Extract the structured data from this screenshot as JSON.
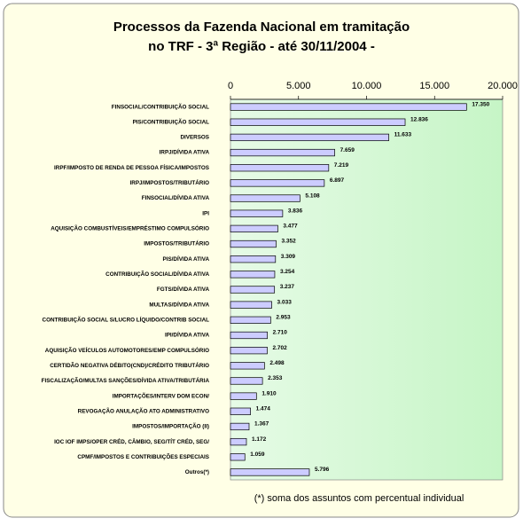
{
  "chart_data": {
    "type": "hbar",
    "title": [
      "Processos da Fazenda Nacional em tramitação",
      "no TRF - 3ª Região - até 30/11/2004 -"
    ],
    "categories": [
      "FINSOCIAL/CONTRIBUIÇÃO SOCIAL",
      "PIS/CONTRIBUIÇÃO SOCIAL",
      "DIVERSOS",
      "IRPJ/DÍVIDA ATIVA",
      "IRPF/IMPOSTO DE RENDA DE PESSOA FÍSICA/IMPOSTOS",
      "IRPJ/IMPOSTOS/TRIBUTÁRIO",
      "FINSOCIAL/DÍVIDA ATIVA",
      "IPI",
      "AQUISIÇÃO COMBUSTÍVEIS/EMPRÉSTIMO COMPULSÓRIO",
      "IMPOSTOS/TRIBUTÁRIO",
      "PIS/DÍVIDA ATIVA",
      "CONTRIBUIÇÃO SOCIAL/DÍVIDA ATIVA",
      "FGTS/DÍVIDA ATIVA",
      "MULTAS/DÍVIDA ATIVA",
      "CONTRIBUIÇÃO SOCIAL S/LUCRO LÍQUIDO/CONTRIB SOCIAL",
      "IPI/DÍVIDA ATIVA",
      "AQUISIÇÃO VEÍCULOS AUTOMOTORES/EMP COMPULSÓRIO",
      "CERTIDÃO NEGATIVA DÉBITO(CND)/CRÉDITO TRIBUTÁRIO",
      "FISCALIZAÇÃO/MULTAS SANÇÕES/DÍVIDA ATIVA/TRIBUTÁRIA",
      "IMPORTAÇÕES/INTERV DOM ECON/",
      "REVOGAÇÃO ANULAÇÃO ATO ADMINISTRATIVO",
      "IMPOSTOS/IMPORTAÇÃO (II)",
      "IOC IOF IMPS/OPER CRÉD, CÂMBIO, SEG/TÍT CRÉD, SEG/",
      "CPMF/IMPOSTOS E CONTRIBUIÇÕES ESPECIAIS",
      "Outros(*)"
    ],
    "values": [
      17350,
      12836,
      11633,
      7659,
      7219,
      6897,
      5108,
      3836,
      3477,
      3352,
      3309,
      3254,
      3237,
      3033,
      2953,
      2710,
      2702,
      2498,
      2353,
      1910,
      1474,
      1367,
      1172,
      1059,
      5796
    ],
    "value_labels": [
      "17.350",
      "12.836",
      "11.633",
      "7.659",
      "7.219",
      "6.897",
      "5.108",
      "3.836",
      "3.477",
      "3.352",
      "3.309",
      "3.254",
      "3.237",
      "3.033",
      "2.953",
      "2.710",
      "2.702",
      "2.498",
      "2.353",
      "1.910",
      "1.474",
      "1.367",
      "1.172",
      "1.059",
      "5.796"
    ],
    "color": "#ccccff",
    "xlim": [
      0,
      20000
    ],
    "xticks": [
      0,
      {
        "value": 5000,
        "label": "5.000"
      },
      {
        "value": 10000,
        "label": "10.000"
      },
      {
        "value": 15000,
        "label": "15.000"
      },
      {
        "value": 20000,
        "label": "20.000"
      }
    ],
    "footnote": "(*) soma dos assuntos com percentual individual"
  }
}
